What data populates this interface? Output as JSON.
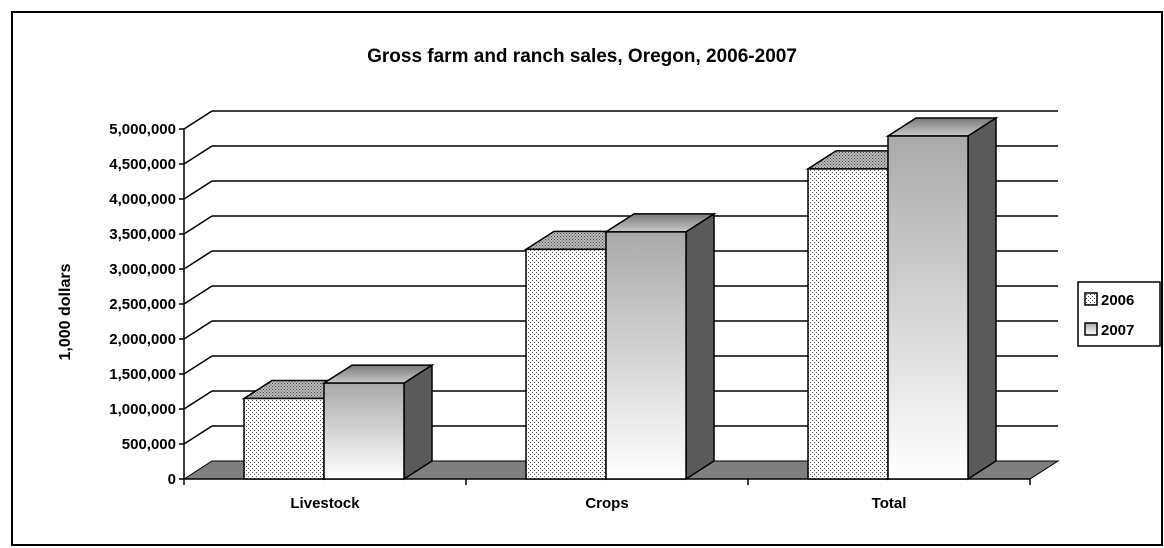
{
  "chart_data": {
    "type": "bar",
    "title": "Gross farm and ranch sales, Oregon, 2006-2007",
    "xlabel": "",
    "ylabel": "1,000 dollars",
    "categories": [
      "Livestock",
      "Crops",
      "Total"
    ],
    "series": [
      {
        "name": "2006",
        "values": [
          1150000,
          3280000,
          4430000
        ]
      },
      {
        "name": "2007",
        "values": [
          1370000,
          3530000,
          4900000
        ]
      }
    ],
    "ylim": [
      0,
      5000000
    ],
    "yticks": [
      "0",
      "500,000",
      "1,000,000",
      "1,500,000",
      "2,000,000",
      "2,500,000",
      "3,000,000",
      "3,500,000",
      "4,000,000",
      "4,500,000",
      "5,000,000"
    ],
    "grid": true,
    "legend_position": "right",
    "style": "3d-clustered-column",
    "colors": {
      "series_2006": "dotted light gray",
      "series_2007": "white-to-gray gradient",
      "floor": "#7f7f7f",
      "side": "#5a5a5a"
    }
  }
}
